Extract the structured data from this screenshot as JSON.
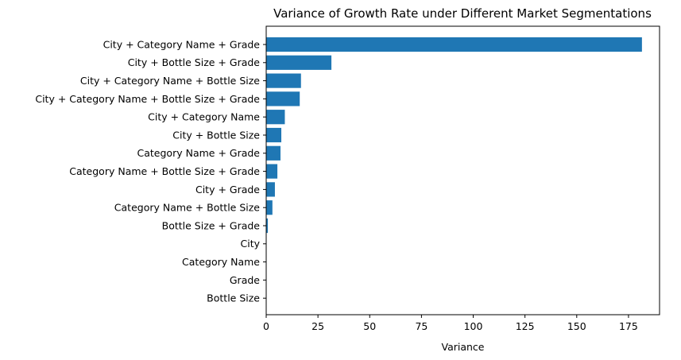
{
  "chart_data": {
    "type": "bar",
    "orientation": "horizontal",
    "title": "Variance of Growth Rate under Different Market Segmentations",
    "xlabel": "Variance",
    "ylabel": "",
    "xlim": [
      0,
      190
    ],
    "xticks": [
      0,
      25,
      50,
      75,
      100,
      125,
      150,
      175
    ],
    "grid": false,
    "bar_color": "#1f77b4",
    "categories": [
      "City + Category Name + Grade",
      "City + Bottle Size + Grade",
      "City + Category Name + Bottle Size",
      "City + Category Name + Bottle Size + Grade",
      "City + Category Name",
      "City + Bottle Size",
      "Category Name + Grade",
      "Category Name + Bottle Size + Grade",
      "City + Grade",
      "Category Name + Bottle Size",
      "Bottle Size + Grade",
      "City",
      "Category Name",
      "Grade",
      "Bottle Size"
    ],
    "values": [
      181.5,
      31.5,
      16.8,
      16.2,
      9.0,
      7.3,
      6.9,
      5.4,
      4.2,
      3.0,
      0.8,
      0.05,
      0.03,
      0.02,
      0.01
    ]
  }
}
